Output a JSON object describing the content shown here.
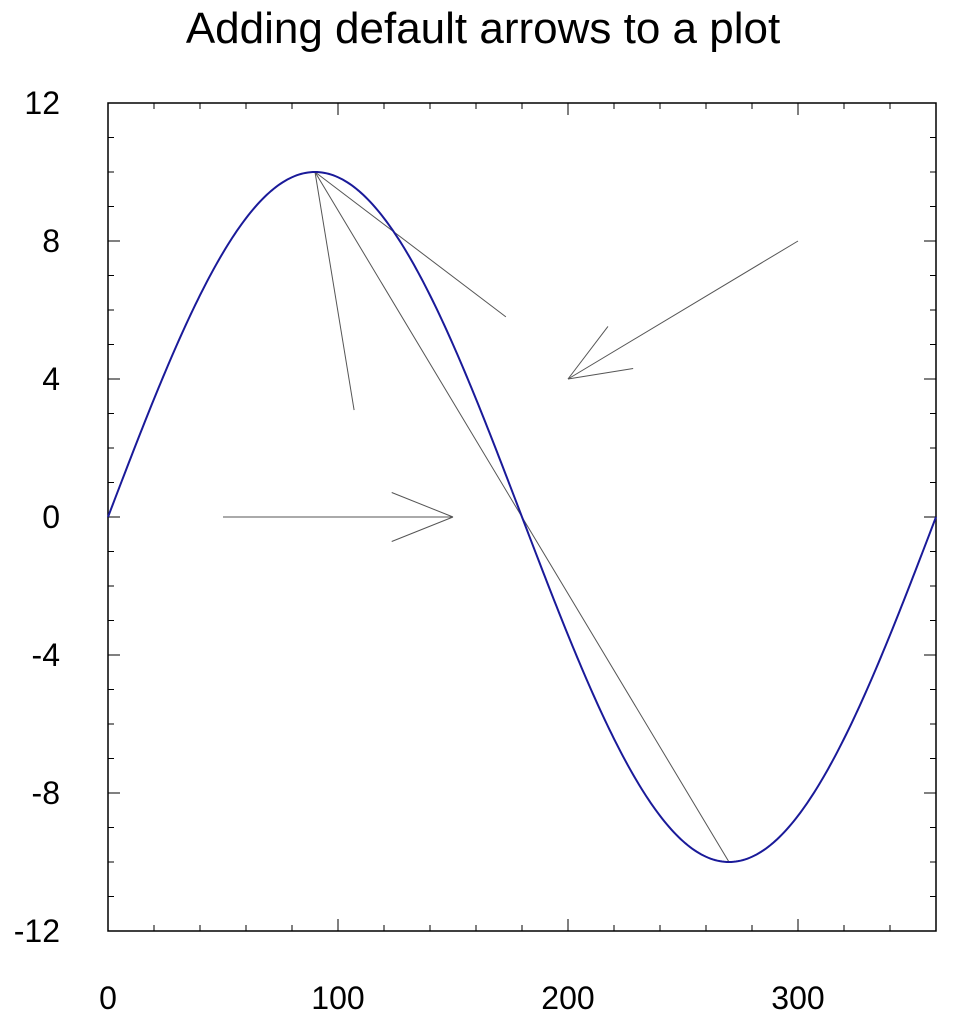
{
  "chart_data": {
    "type": "line",
    "title": "Adding default arrows to a plot",
    "xlim": [
      0,
      360
    ],
    "ylim": [
      -12,
      12
    ],
    "x_ticks": [
      0,
      100,
      200,
      300
    ],
    "y_ticks": [
      12,
      8,
      4,
      0,
      -4,
      -8,
      -12
    ],
    "x_tick_labels": [
      "0",
      "100",
      "200",
      "300"
    ],
    "y_tick_labels": [
      "12",
      "8",
      "4",
      "0",
      "-4",
      "-8",
      "-12"
    ],
    "grid": false,
    "series": [
      {
        "function": "10*sin(x degrees)",
        "x_start": 0,
        "x_end": 360,
        "color": "#1a1a99"
      }
    ],
    "arrows": [
      {
        "from": [
          50,
          0
        ],
        "to": [
          150,
          0
        ],
        "head": true
      },
      {
        "from": [
          300,
          8
        ],
        "to": [
          200,
          4
        ],
        "head": true
      },
      {
        "from": [
          90,
          10
        ],
        "to": [
          173,
          5.8
        ],
        "head": false
      },
      {
        "from": [
          90,
          10
        ],
        "to": [
          107,
          3.1
        ],
        "head": false
      },
      {
        "from": [
          90,
          10
        ],
        "to": [
          270,
          -10
        ],
        "head": false
      }
    ],
    "arrow_color": "#555555"
  }
}
